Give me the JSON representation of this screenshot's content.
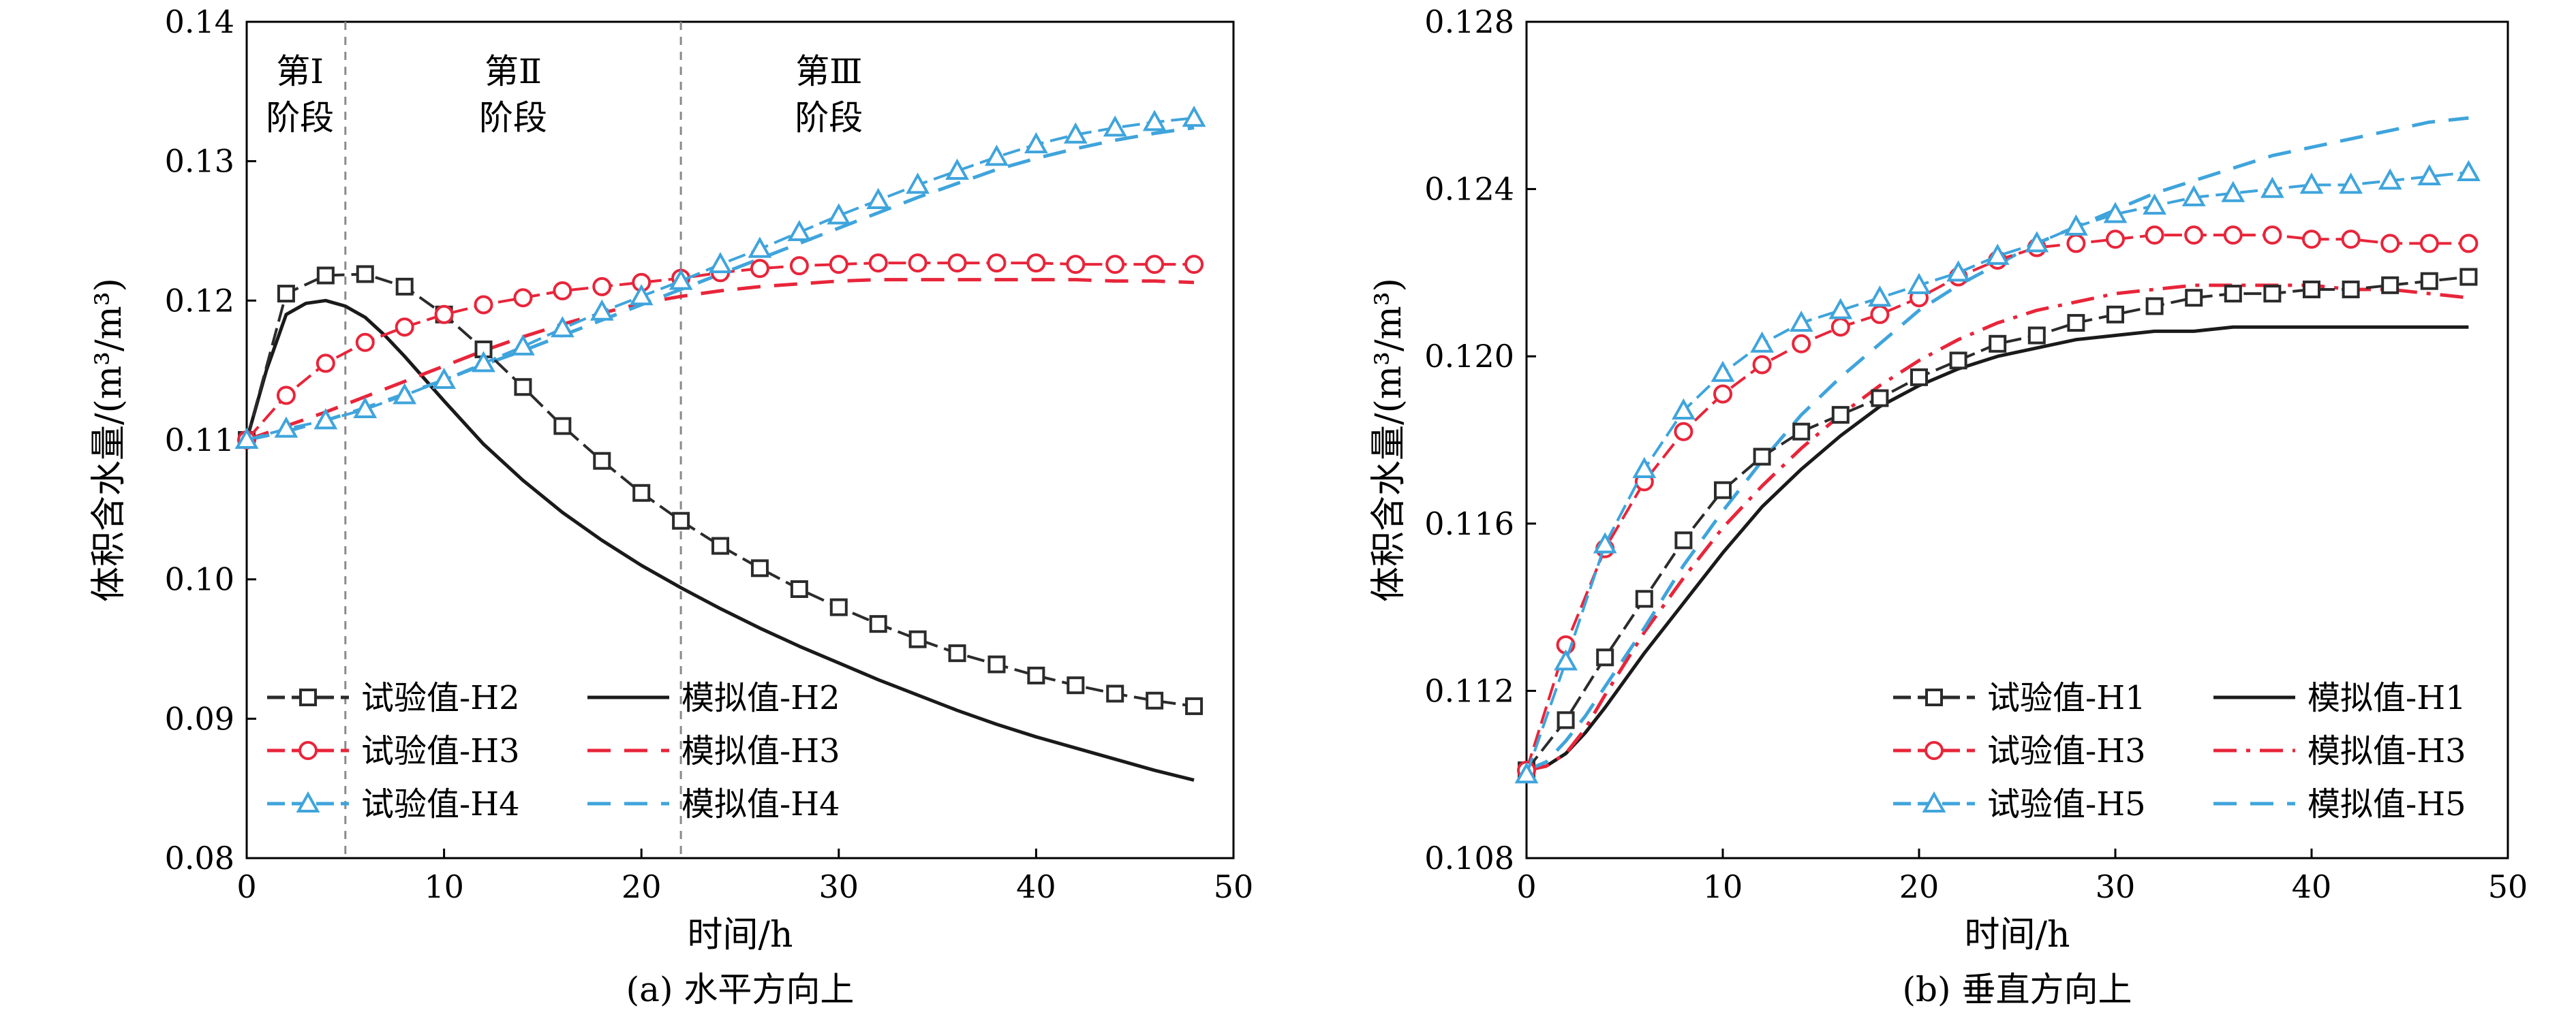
{
  "chart_data": [
    {
      "type": "line",
      "caption": "(a) 水平方向上",
      "xlabel": "时间/h",
      "ylabel": "体积含水量/(m³/m³)",
      "xlim": [
        0,
        50
      ],
      "ylim": [
        0.08,
        0.14
      ],
      "xticks": [
        0,
        10,
        20,
        30,
        40,
        50
      ],
      "xtick_labels": [
        "0",
        "10",
        "20",
        "30",
        "40",
        "50"
      ],
      "yticks": [
        0.08,
        0.09,
        0.1,
        0.11,
        0.12,
        0.13,
        0.14
      ],
      "ytick_labels": [
        "0.08",
        "0.09",
        "0.10",
        "0.11",
        "0.12",
        "0.13",
        "0.14"
      ],
      "grid": false,
      "legend_position": "bottom-left",
      "stage_lines": [
        5,
        22
      ],
      "stage_labels": [
        {
          "line1": "第Ⅰ",
          "line2": "阶段",
          "x": 2.7
        },
        {
          "line1": "第Ⅱ",
          "line2": "阶段",
          "x": 13.5
        },
        {
          "line1": "第Ⅲ",
          "line2": "阶段",
          "x": 29.5
        }
      ],
      "series": [
        {
          "name": "试验值-H2",
          "kind": "measured",
          "marker": "square",
          "color": "#2b2b2b",
          "x": [
            0,
            2,
            4,
            6,
            8,
            10,
            12,
            14,
            16,
            18,
            20,
            22,
            24,
            26,
            28,
            30,
            32,
            34,
            36,
            38,
            40,
            42,
            44,
            46,
            48
          ],
          "y": [
            0.11,
            0.1205,
            0.1218,
            0.1219,
            0.121,
            0.119,
            0.1165,
            0.1138,
            0.111,
            0.1085,
            0.1062,
            0.1042,
            0.1024,
            0.1008,
            0.0993,
            0.098,
            0.0968,
            0.0957,
            0.0947,
            0.0939,
            0.0931,
            0.0924,
            0.0918,
            0.0913,
            0.0909
          ]
        },
        {
          "name": "试验值-H3",
          "kind": "measured",
          "marker": "circle",
          "color": "#e8253a",
          "x": [
            0,
            2,
            4,
            6,
            8,
            10,
            12,
            14,
            16,
            18,
            20,
            22,
            24,
            26,
            28,
            30,
            32,
            34,
            36,
            38,
            40,
            42,
            44,
            46,
            48
          ],
          "y": [
            0.11,
            0.1132,
            0.1155,
            0.117,
            0.1181,
            0.119,
            0.1197,
            0.1202,
            0.1207,
            0.121,
            0.1213,
            0.1216,
            0.122,
            0.1223,
            0.1225,
            0.1226,
            0.1227,
            0.1227,
            0.1227,
            0.1227,
            0.1227,
            0.1226,
            0.1226,
            0.1226,
            0.1226
          ]
        },
        {
          "name": "试验值-H4",
          "kind": "measured",
          "marker": "triangle",
          "color": "#3fa4dc",
          "x": [
            0,
            2,
            4,
            6,
            8,
            10,
            12,
            14,
            16,
            18,
            20,
            22,
            24,
            26,
            28,
            30,
            32,
            34,
            36,
            38,
            40,
            42,
            44,
            46,
            48
          ],
          "y": [
            0.11,
            0.1108,
            0.1114,
            0.1122,
            0.1132,
            0.1143,
            0.1155,
            0.1167,
            0.118,
            0.1192,
            0.1203,
            0.1214,
            0.1226,
            0.1237,
            0.1249,
            0.1261,
            0.1272,
            0.1283,
            0.1293,
            0.1303,
            0.1312,
            0.1319,
            0.1324,
            0.1328,
            0.1331
          ]
        },
        {
          "name": "模拟值-H2",
          "kind": "simulated",
          "dash": "solid",
          "color": "#1a1a1a",
          "x": [
            0,
            1,
            2,
            3,
            4,
            5,
            6,
            7,
            8,
            10,
            12,
            14,
            16,
            18,
            20,
            22,
            24,
            26,
            28,
            30,
            32,
            34,
            36,
            38,
            40,
            42,
            44,
            46,
            48
          ],
          "y": [
            0.11,
            0.115,
            0.119,
            0.1198,
            0.12,
            0.1196,
            0.1188,
            0.1175,
            0.116,
            0.1128,
            0.1097,
            0.1071,
            0.1048,
            0.1028,
            0.101,
            0.0994,
            0.0979,
            0.0965,
            0.0952,
            0.094,
            0.0928,
            0.0917,
            0.0906,
            0.0896,
            0.0887,
            0.0879,
            0.0871,
            0.0863,
            0.0856
          ]
        },
        {
          "name": "模拟值-H3",
          "kind": "simulated",
          "dash": "dashed",
          "color": "#e8253a",
          "x": [
            0,
            2,
            4,
            6,
            8,
            10,
            12,
            14,
            16,
            18,
            20,
            22,
            24,
            26,
            28,
            30,
            32,
            34,
            36,
            38,
            40,
            42,
            44,
            46,
            48
          ],
          "y": [
            0.11,
            0.111,
            0.112,
            0.1131,
            0.1142,
            0.1153,
            0.1164,
            0.1174,
            0.1183,
            0.1191,
            0.1198,
            0.1203,
            0.1207,
            0.121,
            0.1212,
            0.1214,
            0.1215,
            0.1215,
            0.1215,
            0.1215,
            0.1215,
            0.1215,
            0.1214,
            0.1214,
            0.1213
          ]
        },
        {
          "name": "模拟值-H4",
          "kind": "simulated",
          "dash": "dashed",
          "color": "#3fa4dc",
          "x": [
            0,
            2,
            4,
            6,
            8,
            10,
            12,
            14,
            16,
            18,
            20,
            22,
            24,
            26,
            28,
            30,
            32,
            34,
            36,
            38,
            40,
            42,
            44,
            46,
            48
          ],
          "y": [
            0.11,
            0.1106,
            0.1114,
            0.1123,
            0.1133,
            0.1143,
            0.1154,
            0.1164,
            0.1175,
            0.1186,
            0.1197,
            0.1208,
            0.1219,
            0.123,
            0.1241,
            0.1252,
            0.1263,
            0.1274,
            0.1284,
            0.1294,
            0.1302,
            0.1309,
            0.1315,
            0.132,
            0.1324
          ]
        }
      ],
      "legend_columns": [
        [
          "试验值-H2",
          "试验值-H3",
          "试验值-H4"
        ],
        [
          "模拟值-H2",
          "模拟值-H3",
          "模拟值-H4"
        ]
      ]
    },
    {
      "type": "line",
      "caption": "(b) 垂直方向上",
      "xlabel": "时间/h",
      "ylabel": "体积含水量/(m³/m³)",
      "xlim": [
        0,
        50
      ],
      "ylim": [
        0.108,
        0.128
      ],
      "xticks": [
        0,
        10,
        20,
        30,
        40,
        50
      ],
      "xtick_labels": [
        "0",
        "10",
        "20",
        "30",
        "40",
        "50"
      ],
      "yticks": [
        0.108,
        0.112,
        0.116,
        0.12,
        0.124,
        0.128
      ],
      "ytick_labels": [
        "0.108",
        "0.112",
        "0.116",
        "0.120",
        "0.124",
        "0.128"
      ],
      "grid": false,
      "legend_position": "bottom-right",
      "series": [
        {
          "name": "试验值-H1",
          "kind": "measured",
          "marker": "square",
          "color": "#2b2b2b",
          "x": [
            0,
            2,
            4,
            6,
            8,
            10,
            12,
            14,
            16,
            18,
            20,
            22,
            24,
            26,
            28,
            30,
            32,
            34,
            36,
            38,
            40,
            42,
            44,
            46,
            48
          ],
          "y": [
            0.1101,
            0.1113,
            0.1128,
            0.1142,
            0.1156,
            0.1168,
            0.1176,
            0.1182,
            0.1186,
            0.119,
            0.1195,
            0.1199,
            0.1203,
            0.1205,
            0.1208,
            0.121,
            0.1212,
            0.1214,
            0.1215,
            0.1215,
            0.1216,
            0.1216,
            0.1217,
            0.1218,
            0.1219
          ]
        },
        {
          "name": "试验值-H3",
          "kind": "measured",
          "marker": "circle",
          "color": "#e8253a",
          "x": [
            0,
            2,
            4,
            6,
            8,
            10,
            12,
            14,
            16,
            18,
            20,
            22,
            24,
            26,
            28,
            30,
            32,
            34,
            36,
            38,
            40,
            42,
            44,
            46,
            48
          ],
          "y": [
            0.1101,
            0.1131,
            0.1154,
            0.117,
            0.1182,
            0.1191,
            0.1198,
            0.1203,
            0.1207,
            0.121,
            0.1214,
            0.1219,
            0.1223,
            0.1226,
            0.1227,
            0.1228,
            0.1229,
            0.1229,
            0.1229,
            0.1229,
            0.1228,
            0.1228,
            0.1227,
            0.1227,
            0.1227
          ]
        },
        {
          "name": "试验值-H5",
          "kind": "measured",
          "marker": "triangle",
          "color": "#3fa4dc",
          "x": [
            0,
            2,
            4,
            6,
            8,
            10,
            12,
            14,
            16,
            18,
            20,
            22,
            24,
            26,
            28,
            30,
            32,
            34,
            36,
            38,
            40,
            42,
            44,
            46,
            48
          ],
          "y": [
            0.11,
            0.1127,
            0.1155,
            0.1173,
            0.1187,
            0.1196,
            0.1203,
            0.1208,
            0.1211,
            0.1214,
            0.1217,
            0.122,
            0.1224,
            0.1227,
            0.1231,
            0.1234,
            0.1236,
            0.1238,
            0.1239,
            0.124,
            0.1241,
            0.1241,
            0.1242,
            0.1243,
            0.1244
          ]
        },
        {
          "name": "模拟值-H1",
          "kind": "simulated",
          "dash": "solid",
          "color": "#1a1a1a",
          "x": [
            0,
            1,
            2,
            3,
            4,
            6,
            8,
            10,
            12,
            14,
            16,
            18,
            20,
            22,
            24,
            26,
            28,
            30,
            32,
            34,
            36,
            38,
            40,
            42,
            44,
            46,
            48
          ],
          "y": [
            0.1101,
            0.1102,
            0.1105,
            0.111,
            0.1116,
            0.1129,
            0.1141,
            0.1153,
            0.1164,
            0.1173,
            0.1181,
            0.1188,
            0.1193,
            0.1197,
            0.12,
            0.1202,
            0.1204,
            0.1205,
            0.1206,
            0.1206,
            0.1207,
            0.1207,
            0.1207,
            0.1207,
            0.1207,
            0.1207,
            0.1207
          ]
        },
        {
          "name": "模拟值-H3",
          "kind": "simulated",
          "dash": "dashdot",
          "color": "#e8253a",
          "x": [
            0,
            1,
            2,
            3,
            4,
            6,
            8,
            10,
            12,
            14,
            16,
            18,
            20,
            22,
            24,
            26,
            28,
            30,
            32,
            34,
            36,
            38,
            40,
            42,
            44,
            46,
            48
          ],
          "y": [
            0.1101,
            0.1102,
            0.1105,
            0.1111,
            0.1119,
            0.1134,
            0.1147,
            0.1159,
            0.1169,
            0.1178,
            0.1186,
            0.1193,
            0.1199,
            0.1204,
            0.1208,
            0.1211,
            0.1213,
            0.1215,
            0.1216,
            0.1217,
            0.1217,
            0.1217,
            0.1217,
            0.1216,
            0.1216,
            0.1215,
            0.1214
          ]
        },
        {
          "name": "模拟值-H5",
          "kind": "simulated",
          "dash": "dashed",
          "color": "#3fa4dc",
          "x": [
            0,
            1,
            2,
            3,
            4,
            6,
            8,
            10,
            12,
            14,
            16,
            18,
            20,
            22,
            24,
            26,
            28,
            30,
            32,
            34,
            36,
            38,
            40,
            42,
            44,
            46,
            48
          ],
          "y": [
            0.1101,
            0.1103,
            0.1108,
            0.1114,
            0.1121,
            0.1135,
            0.115,
            0.1163,
            0.1175,
            0.1186,
            0.1195,
            0.1203,
            0.1211,
            0.1217,
            0.1222,
            0.1227,
            0.1231,
            0.1235,
            0.1239,
            0.1242,
            0.1245,
            0.1248,
            0.125,
            0.1252,
            0.1254,
            0.1256,
            0.1257
          ]
        }
      ],
      "legend_columns": [
        [
          "试验值-H1",
          "试验值-H3",
          "试验值-H5"
        ],
        [
          "模拟值-H1",
          "模拟值-H3",
          "模拟值-H5"
        ]
      ]
    }
  ]
}
